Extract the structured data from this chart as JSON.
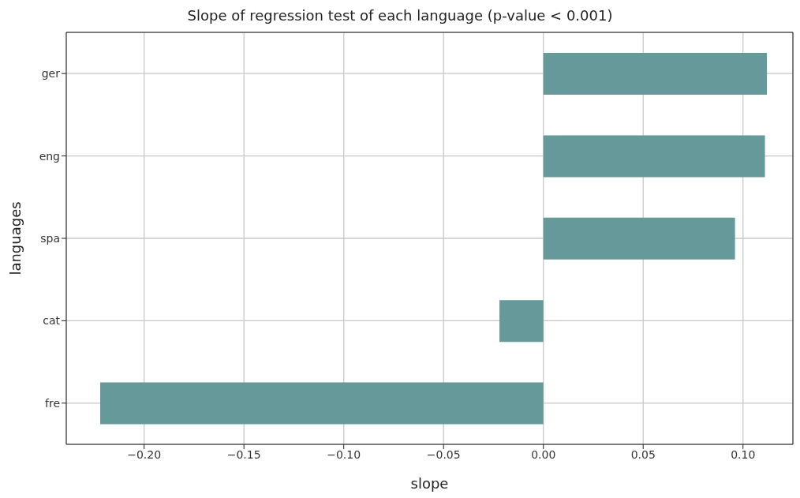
{
  "chart_data": {
    "type": "bar",
    "orientation": "horizontal",
    "title": "Slope of regression test of each language (p-value < 0.001)",
    "xlabel": "slope",
    "ylabel": "languages",
    "categories": [
      "ger",
      "eng",
      "spa",
      "cat",
      "fre"
    ],
    "values": [
      0.112,
      0.111,
      0.096,
      -0.022,
      -0.222
    ],
    "color": "#669999",
    "xlim": [
      -0.239,
      0.125
    ],
    "xticks": [
      {
        "value": -0.2,
        "label": "−0.20"
      },
      {
        "value": -0.15,
        "label": "−0.15"
      },
      {
        "value": -0.1,
        "label": "−0.10"
      },
      {
        "value": -0.05,
        "label": "−0.05"
      },
      {
        "value": 0,
        "label": "0.00"
      },
      {
        "value": 0.05,
        "label": "0.05"
      },
      {
        "value": 0.1,
        "label": "0.10"
      }
    ],
    "grid": true
  }
}
